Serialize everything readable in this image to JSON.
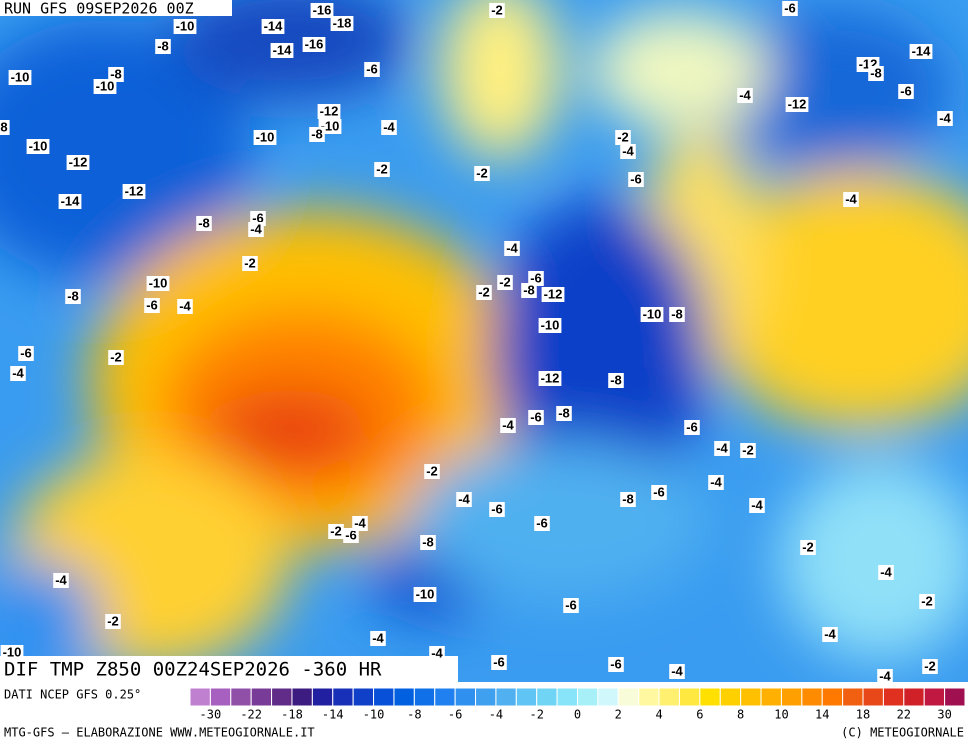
{
  "header": {
    "run": "RUN GFS 09SEP2026 00Z",
    "field": "DIF TMP Z850 00Z24SEP2026 -360 HR",
    "source": "DATI NCEP GFS 0.25°",
    "credit": "MTG-GFS — ELABORAZIONE WWW.METEOGIORNALE.IT",
    "copyright": "(C) METEOGIORNALE"
  },
  "map_labels": [
    -10,
    -14,
    -16,
    -18,
    -8,
    -14,
    -16,
    -2,
    -6,
    -10,
    -8,
    -10,
    -6,
    -12,
    -8,
    -14,
    -4,
    -12,
    -6,
    -12,
    -10,
    -8,
    -4,
    -10,
    -4,
    -2,
    -4,
    -10,
    -12,
    -2,
    -2,
    -6,
    -12,
    -14,
    -4,
    -8,
    -6,
    -4,
    -4,
    -2,
    -6,
    -2,
    -8,
    -12,
    -2,
    -10,
    -8,
    -6,
    -4,
    -10,
    -8,
    -10,
    -6,
    -2,
    -4,
    -12,
    -8,
    -6,
    -8,
    -4,
    -6,
    -4,
    -2,
    -2,
    -4,
    -8,
    -6,
    -4,
    -6,
    -4,
    -6,
    -2,
    -6,
    -4,
    -8,
    -2,
    -4,
    -4,
    -10,
    -2,
    -6,
    -2,
    -4,
    -4,
    -4,
    -6,
    -6,
    -4,
    -2,
    -4,
    -10,
    8
  ],
  "colorbar": {
    "swatches": [
      "#c080d0",
      "#a860c0",
      "#9050a8",
      "#783c98",
      "#602c88",
      "#3c1c80",
      "#2020a0",
      "#1830b8",
      "#1040c8",
      "#0850d8",
      "#0060e0",
      "#1070e8",
      "#2080f0",
      "#3090f0",
      "#40a0f0",
      "#50b0f0",
      "#60c4f4",
      "#70d4f4",
      "#88e4f8",
      "#a8f0f8",
      "#d0f8fc",
      "#f8fcd8",
      "#fff8a0",
      "#fff070",
      "#ffe840",
      "#ffe000",
      "#ffd000",
      "#ffc000",
      "#ffb000",
      "#ffa000",
      "#ff8c00",
      "#ff7800",
      "#f06010",
      "#e84818",
      "#e03020",
      "#d02028",
      "#c01840",
      "#a01050"
    ],
    "ticks": [
      -30,
      -22,
      -18,
      -14,
      -10,
      -8,
      -6,
      -4,
      -2,
      0,
      2,
      4,
      6,
      8,
      10,
      14,
      18,
      22,
      30
    ]
  }
}
